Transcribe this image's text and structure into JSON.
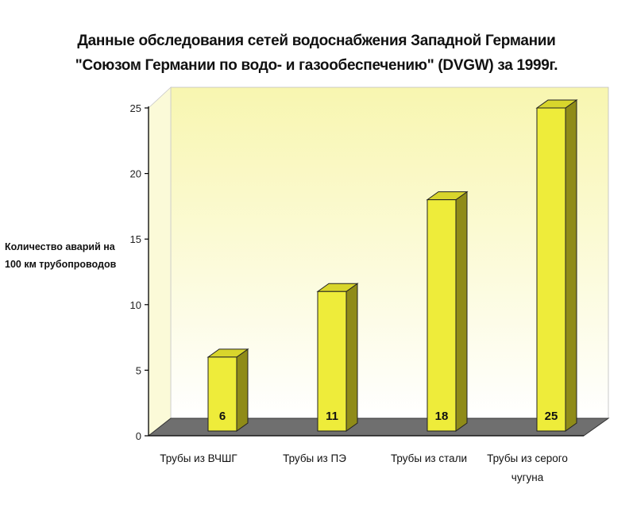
{
  "chart_data": {
    "type": "bar",
    "title_line1": "Данные обследования сетей водоснабжения Западной Германии",
    "title_line2": "\"Союзом Германии по водо- и газообеспечению\" (DVGW) за 1999г.",
    "ylabel_line1": "Количество аварий на",
    "ylabel_line2": "100 км трубопроводов",
    "categories": [
      [
        "Трубы из ВЧШГ"
      ],
      [
        "Трубы из ПЭ"
      ],
      [
        "Трубы из стали"
      ],
      [
        "Трубы из серого",
        "чугуна"
      ]
    ],
    "values": [
      6,
      11,
      18,
      25
    ],
    "data_labels": [
      "6",
      "11",
      "18",
      "25"
    ],
    "ylim": [
      0,
      25
    ],
    "yticks": [
      0,
      5,
      10,
      15,
      20,
      25
    ],
    "grid": false,
    "colors": {
      "bar_front": "#eeec3a",
      "bar_side": "#8f8b18",
      "bar_top": "#d8d52c",
      "floor": "#6f6f6f",
      "wall_top": "#f8f6b0",
      "wall_bottom": "#ffffff"
    }
  }
}
